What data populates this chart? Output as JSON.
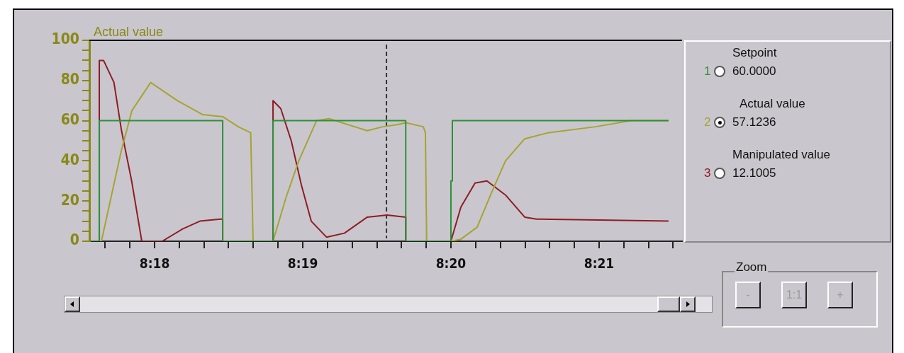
{
  "chart_data": {
    "type": "line",
    "ylabel": "Actual value",
    "xlim": [
      8.29266,
      8.35933
    ],
    "xticks": [
      {
        "value": 8.29444,
        "label": null
      },
      {
        "value": 8.29722,
        "label": null
      },
      {
        "value": 8.3,
        "label": "8:18"
      },
      {
        "value": 8.30278,
        "label": null
      },
      {
        "value": 8.30556,
        "label": null
      },
      {
        "value": 8.30833,
        "label": null
      },
      {
        "value": 8.31111,
        "label": null
      },
      {
        "value": 8.31389,
        "label": null
      },
      {
        "value": 8.31667,
        "label": "8:19"
      },
      {
        "value": 8.31944,
        "label": null
      },
      {
        "value": 8.32222,
        "label": null
      },
      {
        "value": 8.325,
        "label": null
      },
      {
        "value": 8.32778,
        "label": null
      },
      {
        "value": 8.33056,
        "label": null
      },
      {
        "value": 8.33333,
        "label": "8:20"
      },
      {
        "value": 8.33611,
        "label": null
      },
      {
        "value": 8.33889,
        "label": null
      },
      {
        "value": 8.34167,
        "label": null
      },
      {
        "value": 8.34444,
        "label": null
      },
      {
        "value": 8.34722,
        "label": null
      },
      {
        "value": 8.35,
        "label": "8:21"
      },
      {
        "value": 8.35278,
        "label": null
      },
      {
        "value": 8.35556,
        "label": null
      },
      {
        "value": 8.35833,
        "label": null
      }
    ],
    "ylim": [
      0,
      100
    ],
    "yticks": [
      0,
      {
        "value": 5,
        "label": null
      },
      {
        "value": 10,
        "label": null
      },
      {
        "value": 15,
        "label": null
      },
      20,
      {
        "value": 25,
        "label": null
      },
      {
        "value": 30,
        "label": null
      },
      {
        "value": 35,
        "label": null
      },
      40,
      {
        "value": 45,
        "label": null
      },
      {
        "value": 50,
        "label": null
      },
      {
        "value": 55,
        "label": null
      },
      60,
      {
        "value": 65,
        "label": null
      },
      {
        "value": 70,
        "label": null
      },
      {
        "value": 75,
        "label": null
      },
      80,
      {
        "value": 85,
        "label": null
      },
      {
        "value": 90,
        "label": null
      },
      {
        "value": 95,
        "label": null
      },
      100
    ],
    "grid": false,
    "legend": "right",
    "marker": "none",
    "line_style": "solid",
    "ref_lines": [
      {
        "axis": "x",
        "value": 8.32608,
        "color": "#333333",
        "line_style": "dashed"
      }
    ],
    "series": [
      {
        "name": "Setpoint",
        "color": "#2f8f3a",
        "x": [
          8.29266,
          8.29378,
          8.29378,
          8.30766,
          8.30766,
          8.31332,
          8.31332,
          8.32825,
          8.32825,
          8.33333,
          8.33333,
          8.33349,
          8.33349,
          8.35781
        ],
        "values": [
          0,
          0,
          60,
          60,
          0,
          0,
          60,
          60,
          0,
          0,
          30,
          30,
          60,
          60
        ]
      },
      {
        "name": "Actual value",
        "color": "#a6a332",
        "x": [
          8.29266,
          8.29402,
          8.29625,
          8.29745,
          8.29956,
          8.30255,
          8.30542,
          8.30766,
          8.30941,
          8.31081,
          8.31108,
          8.31332,
          8.3148,
          8.31622,
          8.31821,
          8.31962,
          8.32392,
          8.32568,
          8.32727,
          8.32825,
          8.33022,
          8.33046,
          8.3306,
          8.33333,
          8.33445,
          8.33628,
          8.33788,
          8.33947,
          8.34163,
          8.34426,
          8.3496,
          8.35359,
          8.35781
        ],
        "values": [
          0,
          0,
          45,
          65,
          79,
          70,
          63,
          62,
          57,
          54,
          0,
          0,
          22,
          40,
          60,
          61,
          55,
          57,
          58,
          59,
          57,
          54,
          0,
          0,
          1,
          7,
          24,
          40,
          51,
          54,
          57,
          60,
          60
        ]
      },
      {
        "name": "Manipulated value",
        "color": "#8e1c24",
        "x": [
          8.29266,
          8.29378,
          8.29378,
          8.29426,
          8.29543,
          8.29628,
          8.29742,
          8.29856,
          8.30085,
          8.30311,
          8.3051,
          8.30739,
          8.30766,
          8.30766,
          8.31332,
          8.31332,
          8.31419,
          8.31537,
          8.31651,
          8.31762,
          8.31935,
          8.32135,
          8.32392,
          8.32616,
          8.32825,
          8.32825,
          8.33333,
          8.33445,
          8.33604,
          8.33738,
          8.33947,
          8.34163,
          8.34296,
          8.35781
        ],
        "values": [
          0,
          0,
          90,
          90,
          79,
          55,
          30,
          0,
          0,
          6,
          10,
          11,
          11,
          0,
          0,
          70,
          66,
          50,
          28,
          10,
          2,
          4,
          12,
          13,
          12,
          0,
          0,
          17,
          29,
          30,
          23,
          12,
          11,
          10
        ]
      }
    ],
    "annotations": [
      "1",
      "60.0000",
      "2",
      "57.1236",
      "3",
      "12.1005",
      "Zoom",
      "-",
      "1:1",
      "+"
    ]
  }
}
